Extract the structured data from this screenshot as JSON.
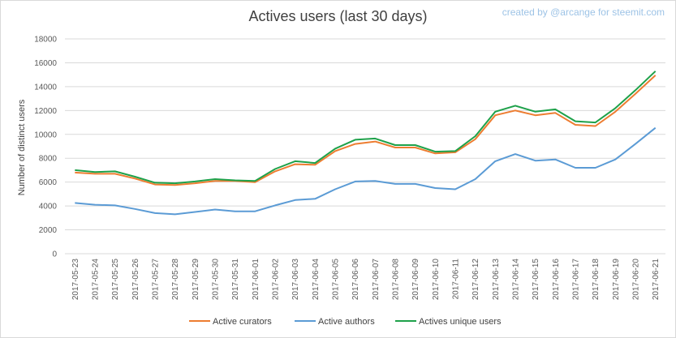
{
  "credit_text": "created by @arcange for steemit.com",
  "chart_data": {
    "type": "line",
    "title": "Actives users (last 30 days)",
    "xlabel": "",
    "ylabel": "Number of distinct users",
    "ylim": [
      0,
      18000
    ],
    "yticks": [
      0,
      2000,
      4000,
      6000,
      8000,
      10000,
      12000,
      14000,
      16000,
      18000
    ],
    "grid": true,
    "legend_position": "bottom",
    "categories": [
      "2017-05-23",
      "2017-05-24",
      "2017-05-25",
      "2017-05-26",
      "2017-05-27",
      "2017-05-28",
      "2017-05-29",
      "2017-05-30",
      "2017-05-31",
      "2017-06-01",
      "2017-06-02",
      "2017-06-03",
      "2017-06-04",
      "2017-06-05",
      "2017-06-06",
      "2017-06-07",
      "2017-06-08",
      "2017-06-09",
      "2017-06-10",
      "2017-06-11",
      "2017-06-12",
      "2017-06-13",
      "2017-06-14",
      "2017-06-15",
      "2017-06-16",
      "2017-06-17",
      "2017-06-18",
      "2017-06-19",
      "2017-06-20",
      "2017-06-21"
    ],
    "series": [
      {
        "name": "Active curators",
        "color": "#ed7d31",
        "values": [
          6800,
          6700,
          6700,
          6300,
          5800,
          5750,
          5900,
          6100,
          6100,
          6000,
          6900,
          7500,
          7450,
          8600,
          9200,
          9400,
          8900,
          8900,
          8400,
          8500,
          9600,
          11600,
          12000,
          11600,
          11800,
          10800,
          10700,
          11900,
          13400,
          14950
        ]
      },
      {
        "name": "Active authors",
        "color": "#5b9bd5",
        "values": [
          4250,
          4100,
          4050,
          3750,
          3400,
          3300,
          3500,
          3700,
          3550,
          3550,
          4050,
          4500,
          4600,
          5400,
          6050,
          6100,
          5850,
          5850,
          5500,
          5400,
          6250,
          7750,
          8350,
          7800,
          7900,
          7200,
          7200,
          7900,
          9200,
          10550
        ]
      },
      {
        "name": "Actives unique users",
        "color": "#1ea14a",
        "values": [
          7000,
          6850,
          6900,
          6450,
          5950,
          5900,
          6050,
          6250,
          6150,
          6100,
          7100,
          7750,
          7600,
          8800,
          9550,
          9650,
          9100,
          9100,
          8550,
          8600,
          9850,
          11900,
          12400,
          11900,
          12100,
          11100,
          11000,
          12200,
          13700,
          15300
        ]
      }
    ]
  }
}
